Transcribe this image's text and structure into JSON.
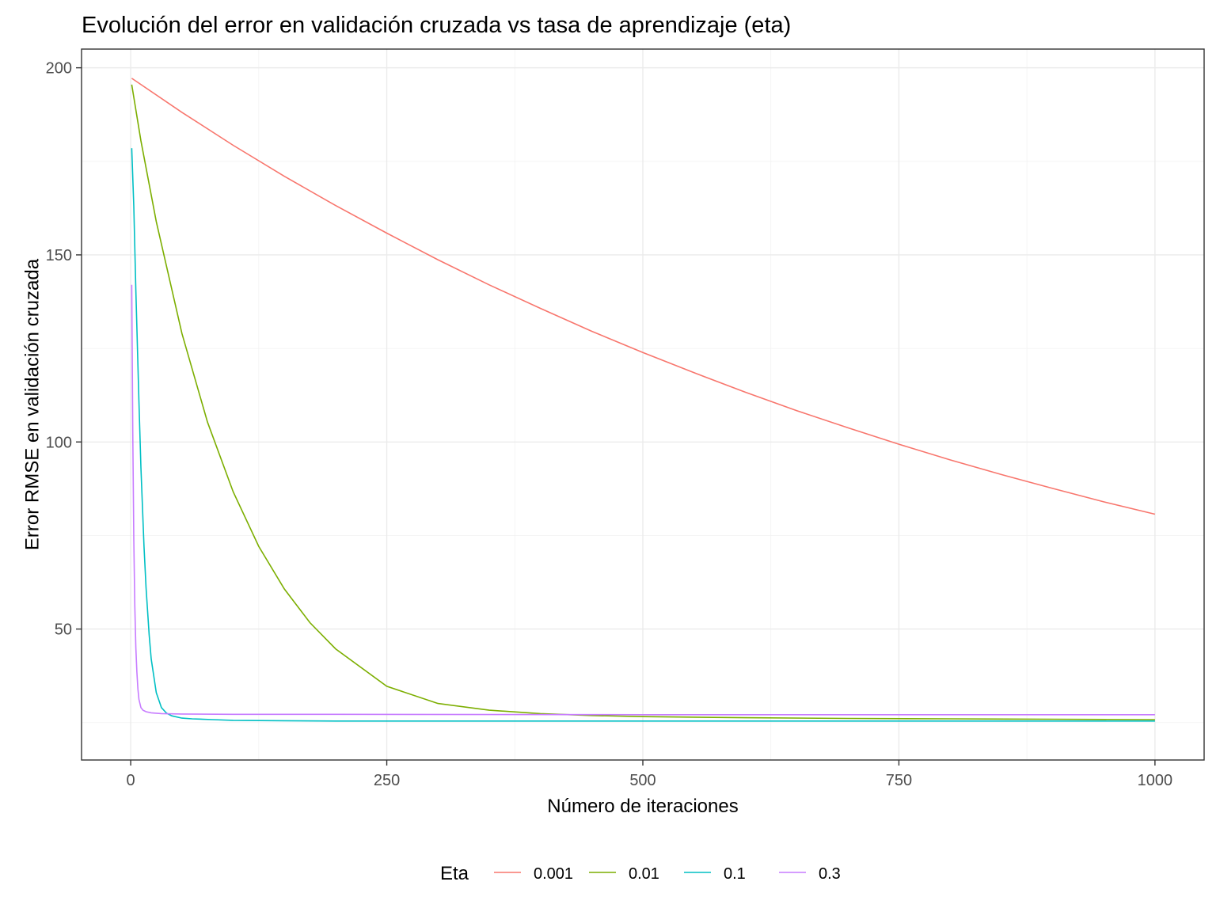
{
  "chart_data": {
    "type": "line",
    "title": "Evolución del error en validación cruzada vs tasa de aprendizaje (eta)",
    "xlabel": "Número de iteraciones",
    "ylabel": "Error RMSE en validación cruzada",
    "xlim": [
      -48,
      1048
    ],
    "ylim": [
      15,
      205
    ],
    "x_ticks": [
      0,
      250,
      500,
      750,
      1000
    ],
    "y_ticks": [
      50,
      100,
      150,
      200
    ],
    "x_tick_labels": [
      "0",
      "250",
      "500",
      "750",
      "1000"
    ],
    "y_tick_labels": [
      "50",
      "100",
      "150",
      "200"
    ],
    "grid": true,
    "legend": {
      "title": "Eta",
      "position": "bottom"
    },
    "series": [
      {
        "name": "0.001",
        "color": "#F8766D",
        "x": [
          1,
          50,
          100,
          150,
          200,
          250,
          300,
          350,
          400,
          450,
          500,
          550,
          600,
          650,
          700,
          750,
          800,
          850,
          900,
          950,
          1000
        ],
        "y": [
          197.2,
          188.1,
          179.3,
          171.0,
          163.2,
          155.8,
          148.7,
          142.0,
          135.7,
          129.6,
          123.9,
          118.5,
          113.3,
          108.4,
          103.8,
          99.4,
          95.2,
          91.3,
          87.6,
          84.0,
          80.7
        ]
      },
      {
        "name": "0.01",
        "color": "#7CAE00",
        "x": [
          1,
          10,
          25,
          50,
          75,
          100,
          125,
          150,
          175,
          200,
          250,
          300,
          350,
          400,
          450,
          500,
          600,
          700,
          800,
          900,
          1000
        ],
        "y": [
          195.5,
          180.5,
          158.9,
          129.0,
          105.3,
          86.7,
          72.1,
          60.7,
          51.7,
          44.7,
          34.7,
          30.1,
          28.3,
          27.4,
          26.9,
          26.6,
          26.3,
          26.1,
          26.0,
          25.9,
          25.8
        ]
      },
      {
        "name": "0.1",
        "color": "#00BFC4",
        "x": [
          1,
          3,
          5,
          8,
          10,
          13,
          15,
          18,
          20,
          25,
          30,
          35,
          40,
          50,
          60,
          80,
          100,
          150,
          200,
          500,
          1000
        ],
        "y": [
          178.5,
          163.0,
          140.5,
          110.8,
          93.2,
          72.1,
          61.0,
          48.5,
          42.0,
          33.0,
          29.0,
          27.5,
          26.8,
          26.2,
          26.0,
          25.8,
          25.6,
          25.5,
          25.4,
          25.4,
          25.4
        ]
      },
      {
        "name": "0.3",
        "color": "#C77CFF",
        "x": [
          1,
          2,
          3,
          4,
          5,
          6,
          7,
          8,
          10,
          12,
          15,
          20,
          30,
          50,
          100,
          200,
          500,
          1000
        ],
        "y": [
          142.0,
          102.8,
          74.0,
          56.0,
          45.0,
          38.5,
          34.0,
          31.2,
          29.0,
          28.3,
          27.9,
          27.6,
          27.4,
          27.3,
          27.2,
          27.2,
          27.1,
          27.1
        ]
      }
    ]
  }
}
